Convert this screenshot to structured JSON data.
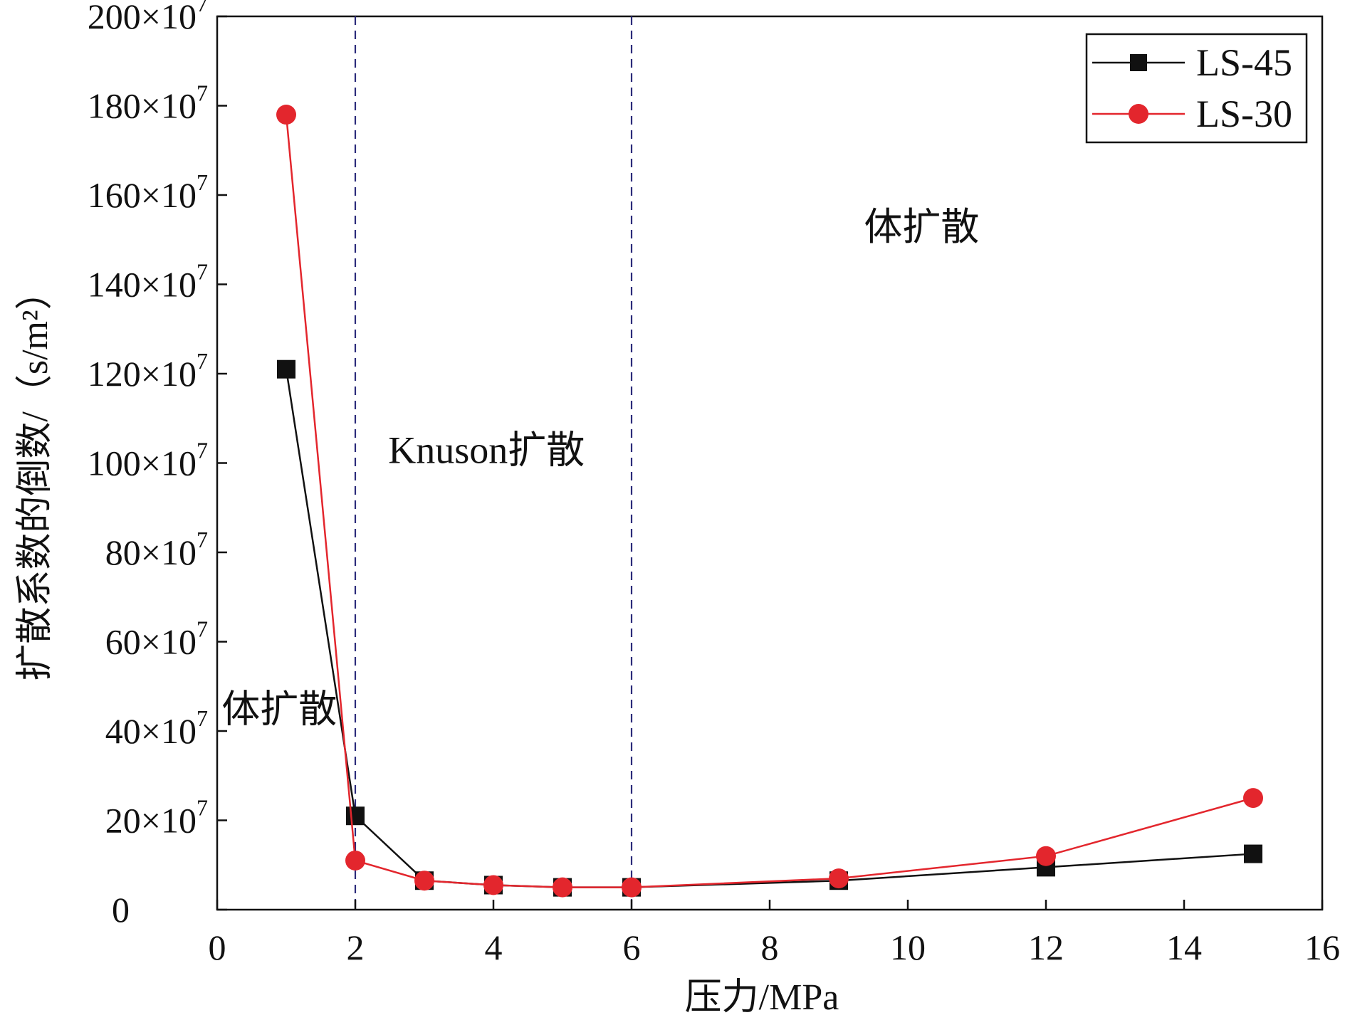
{
  "chart_data": {
    "type": "line",
    "xlabel": "压力/MPa",
    "ylabel": "扩散系数的倒数/（s/m²）",
    "xlim": [
      0,
      16
    ],
    "ylim": [
      0,
      200
    ],
    "y_tick_multiplier": "×10",
    "y_tick_exponent": "7",
    "x_ticks": [
      0,
      2,
      4,
      6,
      8,
      10,
      12,
      14,
      16
    ],
    "y_ticks": [
      0,
      20,
      40,
      60,
      80,
      100,
      120,
      140,
      160,
      180,
      200
    ],
    "vlines": [
      2,
      6
    ],
    "grid": false,
    "legend_position": "top-right",
    "annotations": [
      {
        "text": "体扩散",
        "x": 0.9,
        "y": 42
      },
      {
        "text": "Knuson扩散",
        "x": 3.9,
        "y": 100
      },
      {
        "text": "体扩散",
        "x": 10.2,
        "y": 150
      }
    ],
    "series": [
      {
        "name": "LS-45",
        "color": "#111111",
        "marker": "square",
        "x": [
          1,
          2,
          3,
          4,
          5,
          6,
          9,
          12,
          15
        ],
        "y": [
          121,
          21,
          6.5,
          5.5,
          5,
          5,
          6.5,
          9.5,
          12.5
        ]
      },
      {
        "name": "LS-30",
        "color": "#e3262d",
        "marker": "circle",
        "x": [
          1,
          2,
          3,
          4,
          5,
          6,
          9,
          12,
          15
        ],
        "y": [
          178,
          11,
          6.5,
          5.5,
          5,
          5,
          7,
          12,
          25
        ]
      }
    ]
  }
}
